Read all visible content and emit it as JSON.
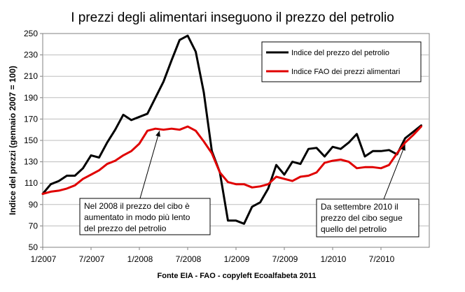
{
  "chart_data": {
    "type": "line",
    "title": "I prezzi degli alimentari inseguono il prezzo del petrolio",
    "ylabel": "Indice del prezzi (gennaio 2007 = 100)",
    "xlabel": "",
    "source": "Fonte EIA - FAO - copyleft Ecoalfabeta 2011",
    "ylim": [
      50,
      250
    ],
    "yticks": [
      50,
      70,
      90,
      110,
      130,
      150,
      170,
      190,
      210,
      230,
      250
    ],
    "xlim": [
      0,
      48
    ],
    "xticks": [
      {
        "pos": 0,
        "label": "1/2007"
      },
      {
        "pos": 6,
        "label": "7/2007"
      },
      {
        "pos": 12,
        "label": "1/2008"
      },
      {
        "pos": 18,
        "label": "7/2008"
      },
      {
        "pos": 24,
        "label": "1/2009"
      },
      {
        "pos": 30,
        "label": "7/2009"
      },
      {
        "pos": 36,
        "label": "1/2010"
      },
      {
        "pos": 42,
        "label": "7/2010"
      }
    ],
    "grid": true,
    "legend_position": "top-right",
    "series": [
      {
        "name": "Indice del prezzo del petrolio",
        "color": "#000000",
        "points": [
          [
            0,
            100
          ],
          [
            1,
            109
          ],
          [
            2,
            112
          ],
          [
            3,
            117
          ],
          [
            4,
            117
          ],
          [
            5,
            124
          ],
          [
            6,
            136
          ],
          [
            7,
            134
          ],
          [
            8,
            148
          ],
          [
            9,
            160
          ],
          [
            10,
            174
          ],
          [
            11,
            169
          ],
          [
            12,
            172
          ],
          [
            13,
            175
          ],
          [
            14,
            190
          ],
          [
            15,
            205
          ],
          [
            16,
            225
          ],
          [
            17,
            244
          ],
          [
            18,
            248
          ],
          [
            19,
            233
          ],
          [
            20,
            195
          ],
          [
            21,
            140
          ],
          [
            22,
            120
          ],
          [
            23,
            75
          ],
          [
            24,
            75
          ],
          [
            25,
            72
          ],
          [
            26,
            88
          ],
          [
            27,
            92
          ],
          [
            28,
            105
          ],
          [
            29,
            127
          ],
          [
            30,
            118
          ],
          [
            31,
            130
          ],
          [
            32,
            128
          ],
          [
            33,
            142
          ],
          [
            34,
            143
          ],
          [
            35,
            135
          ],
          [
            36,
            144
          ],
          [
            37,
            142
          ],
          [
            38,
            148
          ],
          [
            39,
            156
          ],
          [
            40,
            135
          ],
          [
            41,
            140
          ],
          [
            42,
            140
          ],
          [
            43,
            141
          ],
          [
            44,
            137
          ],
          [
            45,
            152
          ],
          [
            46,
            158
          ],
          [
            47,
            164
          ]
        ]
      },
      {
        "name": "Indice FAO dei prezzi alimentari",
        "color": "#e00000",
        "points": [
          [
            0,
            100
          ],
          [
            1,
            102
          ],
          [
            2,
            103
          ],
          [
            3,
            105
          ],
          [
            4,
            108
          ],
          [
            5,
            114
          ],
          [
            6,
            118
          ],
          [
            7,
            122
          ],
          [
            8,
            128
          ],
          [
            9,
            131
          ],
          [
            10,
            136
          ],
          [
            11,
            140
          ],
          [
            12,
            147
          ],
          [
            13,
            159
          ],
          [
            14,
            161
          ],
          [
            15,
            160
          ],
          [
            16,
            161
          ],
          [
            17,
            160
          ],
          [
            18,
            163
          ],
          [
            19,
            159
          ],
          [
            20,
            149
          ],
          [
            21,
            138
          ],
          [
            22,
            120
          ],
          [
            23,
            111
          ],
          [
            24,
            109
          ],
          [
            25,
            109
          ],
          [
            26,
            106
          ],
          [
            27,
            107
          ],
          [
            28,
            109
          ],
          [
            29,
            116
          ],
          [
            30,
            114
          ],
          [
            31,
            112
          ],
          [
            32,
            116
          ],
          [
            33,
            117
          ],
          [
            34,
            120
          ],
          [
            35,
            129
          ],
          [
            36,
            131
          ],
          [
            37,
            132
          ],
          [
            38,
            130
          ],
          [
            39,
            124
          ],
          [
            40,
            125
          ],
          [
            41,
            125
          ],
          [
            42,
            124
          ],
          [
            43,
            127
          ],
          [
            44,
            138
          ],
          [
            45,
            148
          ],
          [
            46,
            155
          ],
          [
            47,
            163
          ]
        ]
      }
    ],
    "annotations": [
      {
        "lines": [
          "Nel 2008 il prezzo del cibo è",
          "aumentato in modo più lento",
          "del prezzo del petrolio"
        ],
        "arrow_target": [
          14.5,
          159
        ]
      },
      {
        "lines": [
          "Da settembre 2010 il",
          "prezzo del cibo  segue",
          "quello del petrolio"
        ],
        "arrow_target": [
          45,
          146
        ]
      }
    ]
  }
}
